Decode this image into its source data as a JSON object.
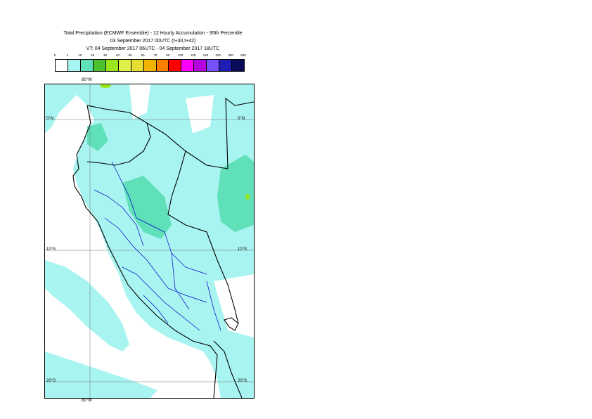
{
  "title": {
    "line1": "Total Precipitation (ECMWF Ensemble) - 12 Hourly Accumulation - 95th Percentile",
    "line2": "03 September 2017 00UTC (t+30,t+42)",
    "line3": "VT: 04 September 2017 06UTC - 04 September 2017 18UTC"
  },
  "legend": {
    "labels": [
      "0",
      "1",
      "10",
      "20",
      "30",
      "40",
      "50",
      "60",
      "70",
      "80",
      "100",
      "125",
      "150",
      "200",
      "300",
      "500"
    ],
    "colors": [
      "#ffffff",
      "#a8f4f0",
      "#5fe0b8",
      "#4cc22e",
      "#99e61a",
      "#e1f048",
      "#e6dc32",
      "#f0b400",
      "#ff8000",
      "#ff0000",
      "#ff00ff",
      "#b400dc",
      "#7850ff",
      "#1e1eb4",
      "#0a0a5a"
    ]
  },
  "map": {
    "lon_top": "80°W",
    "lon_bottom": "80°W",
    "lat_labels": [
      "0°N",
      "10°S",
      "20°S"
    ],
    "colors": {
      "land_fill": "#a8f4f0",
      "heavy": "#5fe0b8",
      "peak": "#99e61a",
      "coast": "#000000",
      "admin": "#0000cc"
    }
  }
}
